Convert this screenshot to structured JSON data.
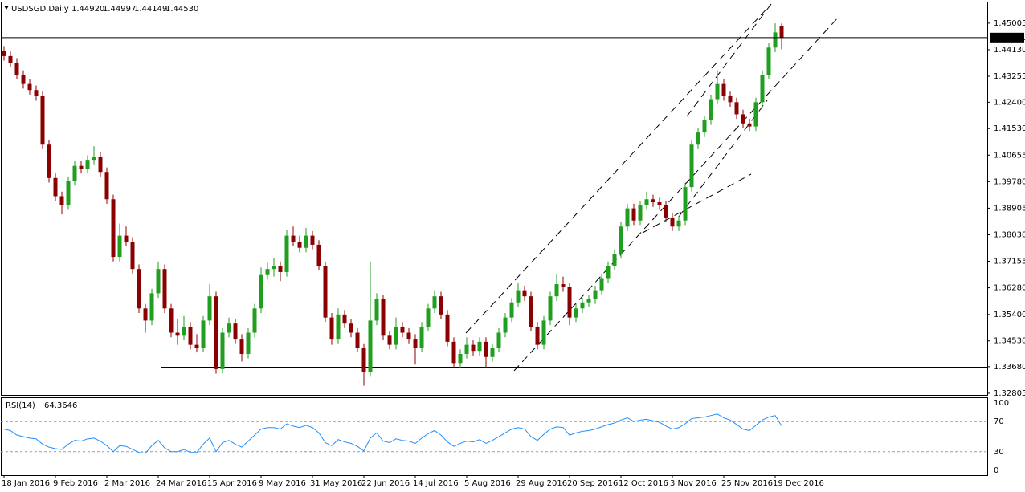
{
  "chart_data": {
    "type": "candlestick",
    "title": "USDSGD,Daily",
    "header_ohlc": [
      {
        "value": 1.4492,
        "label": "1.44920"
      },
      1.44997,
      1.44149,
      {
        "value": 1.4453,
        "label": "1.44530"
      }
    ],
    "last_price": {
      "value": 1.4453,
      "label": "1.44530"
    },
    "up_color": "#1f9e1f",
    "down_color": "#8b0000",
    "categories": [
      "18 Jan 2016",
      null,
      null,
      null,
      null,
      null,
      null,
      null,
      "9 Feb 2016",
      null,
      null,
      null,
      null,
      null,
      null,
      null,
      "2 Mar 2016",
      null,
      null,
      null,
      null,
      null,
      null,
      null,
      "24 Mar 2016",
      null,
      null,
      null,
      null,
      null,
      null,
      null,
      "15 Apr 2016",
      null,
      null,
      null,
      null,
      null,
      null,
      null,
      "9 May 2016",
      null,
      null,
      null,
      null,
      null,
      null,
      null,
      "31 May 2016",
      null,
      null,
      null,
      null,
      null,
      null,
      null,
      "22 Jun 2016",
      null,
      null,
      null,
      null,
      null,
      null,
      null,
      "14 Jul 2016",
      null,
      null,
      null,
      null,
      null,
      null,
      null,
      "5 Aug 2016",
      null,
      null,
      null,
      null,
      null,
      null,
      null,
      "29 Aug 2016",
      null,
      null,
      null,
      null,
      null,
      null,
      null,
      "20 Sep 2016",
      null,
      null,
      null,
      null,
      null,
      null,
      null,
      "12 Oct 2016",
      null,
      null,
      null,
      null,
      null,
      null,
      null,
      "3 Nov 2016",
      null,
      null,
      null,
      null,
      null,
      null,
      null,
      "25 Nov 2016",
      null,
      null,
      null,
      null,
      null,
      null,
      null,
      "19 Dec 2016",
      null
    ],
    "open": [
      1.441,
      1.4392,
      1.437,
      1.433,
      1.43,
      1.428,
      1.426,
      1.41,
      1.399,
      1.393,
      1.39,
      1.398,
      1.403,
      1.402,
      1.405,
      1.406,
      1.401,
      1.392,
      1.373,
      1.38,
      1.378,
      1.369,
      1.356,
      1.352,
      1.361,
      1.369,
      1.356,
      1.348,
      1.347,
      1.35,
      1.344,
      1.343,
      1.352,
      1.36,
      1.336,
      1.348,
      1.351,
      1.346,
      1.341,
      1.348,
      1.356,
      1.367,
      1.369,
      1.37,
      1.368,
      1.38,
      1.378,
      1.376,
      1.38,
      1.377,
      1.37,
      1.353,
      1.346,
      1.354,
      1.351,
      1.348,
      1.343,
      1.335,
      1.352,
      1.359,
      1.347,
      1.344,
      1.35,
      1.348,
      1.346,
      1.343,
      1.35,
      1.356,
      1.36,
      1.354,
      1.345,
      1.338,
      1.341,
      1.344,
      1.342,
      1.345,
      1.34,
      1.343,
      1.348,
      1.353,
      1.358,
      1.362,
      1.36,
      1.35,
      1.344,
      1.352,
      1.36,
      1.364,
      1.363,
      1.353,
      1.356,
      1.358,
      1.359,
      1.362,
      1.366,
      1.37,
      1.374,
      1.383,
      1.389,
      1.385,
      1.39,
      1.392,
      1.391,
      1.39,
      1.386,
      1.383,
      1.385,
      1.396,
      1.41,
      1.414,
      1.418,
      1.425,
      1.43,
      1.426,
      1.424,
      1.42,
      1.417,
      1.416,
      1.424,
      1.433,
      1.442,
      1.4492
    ],
    "high": [
      1.4425,
      1.4407,
      1.4385,
      1.4345,
      1.4315,
      1.4295,
      1.4275,
      1.4115,
      1.4005,
      1.3945,
      1.3995,
      1.4045,
      1.4045,
      1.4065,
      1.4095,
      1.4075,
      1.4025,
      1.3935,
      1.384,
      1.383,
      1.3795,
      1.3705,
      1.3575,
      1.3625,
      1.3715,
      1.3705,
      1.3575,
      1.3525,
      1.3535,
      1.3515,
      1.3475,
      1.3535,
      1.364,
      1.3615,
      1.3495,
      1.353,
      1.3525,
      1.3475,
      1.3495,
      1.3575,
      1.3695,
      1.371,
      1.3725,
      1.3715,
      1.382,
      1.383,
      1.38,
      1.3825,
      1.3815,
      1.3785,
      1.3715,
      1.3545,
      1.356,
      1.3555,
      1.3525,
      1.3495,
      1.3445,
      1.3715,
      1.361,
      1.3605,
      1.3485,
      1.353,
      1.3515,
      1.3495,
      1.3475,
      1.3515,
      1.3575,
      1.362,
      1.3615,
      1.3555,
      1.3465,
      1.3425,
      1.3465,
      1.3455,
      1.3465,
      1.3465,
      1.3445,
      1.3495,
      1.3545,
      1.3595,
      1.3645,
      1.3635,
      1.3615,
      1.3515,
      1.3535,
      1.3615,
      1.3675,
      1.3665,
      1.3645,
      1.3575,
      1.3595,
      1.3605,
      1.3635,
      1.3675,
      1.3715,
      1.3755,
      1.3845,
      1.3905,
      1.3905,
      1.3915,
      1.3945,
      1.3935,
      1.3925,
      1.3915,
      1.3875,
      1.3865,
      1.3975,
      1.4115,
      1.4155,
      1.4195,
      1.4265,
      1.4345,
      1.4315,
      1.4275,
      1.4255,
      1.4215,
      1.4185,
      1.4255,
      1.4345,
      1.4435,
      1.45,
      1.44997
    ],
    "low": [
      1.4377,
      1.4355,
      1.4315,
      1.4285,
      1.4265,
      1.4245,
      1.4085,
      1.3975,
      1.3915,
      1.387,
      1.3885,
      1.3965,
      1.4005,
      1.4005,
      1.4035,
      1.3995,
      1.3905,
      1.3715,
      1.3715,
      1.3765,
      1.3675,
      1.3545,
      1.348,
      1.3505,
      1.3595,
      1.3545,
      1.3465,
      1.344,
      1.3455,
      1.3425,
      1.3415,
      1.3415,
      1.3505,
      1.3345,
      1.3345,
      1.3465,
      1.3445,
      1.3385,
      1.3395,
      1.3465,
      1.3545,
      1.3655,
      1.3665,
      1.365,
      1.3665,
      1.3765,
      1.3745,
      1.3745,
      1.3755,
      1.3685,
      1.3515,
      1.344,
      1.3445,
      1.3495,
      1.3465,
      1.3415,
      1.3305,
      1.3335,
      1.3505,
      1.3455,
      1.3425,
      1.3425,
      1.3465,
      1.3445,
      1.3375,
      1.3415,
      1.3485,
      1.3545,
      1.3525,
      1.3435,
      1.3365,
      1.3365,
      1.3395,
      1.3405,
      1.3405,
      1.3365,
      1.3385,
      1.3415,
      1.3465,
      1.3515,
      1.3565,
      1.3585,
      1.3485,
      1.3425,
      1.3425,
      1.3505,
      1.3585,
      1.3615,
      1.3505,
      1.3515,
      1.3545,
      1.3565,
      1.3575,
      1.3605,
      1.3645,
      1.3685,
      1.3725,
      1.3815,
      1.3835,
      1.3835,
      1.3885,
      1.3895,
      1.3885,
      1.3845,
      1.3815,
      1.3815,
      1.3835,
      1.3945,
      1.4085,
      1.4125,
      1.4165,
      1.4235,
      1.4245,
      1.4225,
      1.4185,
      1.4155,
      1.4145,
      1.4145,
      1.4225,
      1.4315,
      1.4405,
      1.44149
    ],
    "close": [
      1.4392,
      1.437,
      1.433,
      1.43,
      1.428,
      1.426,
      1.41,
      1.399,
      1.393,
      1.39,
      1.398,
      1.403,
      1.402,
      1.405,
      1.406,
      1.401,
      1.392,
      1.373,
      1.38,
      1.378,
      1.369,
      1.356,
      1.352,
      1.361,
      1.369,
      1.356,
      1.348,
      1.347,
      1.35,
      1.344,
      1.343,
      1.352,
      1.36,
      1.336,
      1.348,
      1.351,
      1.346,
      1.341,
      1.348,
      1.356,
      1.367,
      1.369,
      1.37,
      1.368,
      1.38,
      1.378,
      1.376,
      1.38,
      1.377,
      1.37,
      1.353,
      1.346,
      1.354,
      1.351,
      1.348,
      1.343,
      1.335,
      1.352,
      1.359,
      1.347,
      1.344,
      1.35,
      1.348,
      1.346,
      1.343,
      1.35,
      1.356,
      1.36,
      1.354,
      1.345,
      1.338,
      1.341,
      1.344,
      1.342,
      1.345,
      1.34,
      1.343,
      1.348,
      1.353,
      1.358,
      1.362,
      1.36,
      1.35,
      1.344,
      1.352,
      1.36,
      1.364,
      1.363,
      1.353,
      1.356,
      1.358,
      1.359,
      1.362,
      1.366,
      1.37,
      1.374,
      1.383,
      1.389,
      1.385,
      1.39,
      1.392,
      1.391,
      1.39,
      1.386,
      1.383,
      1.385,
      1.396,
      1.41,
      1.414,
      1.418,
      1.425,
      1.43,
      1.426,
      1.424,
      1.42,
      1.417,
      1.416,
      1.424,
      1.433,
      1.442,
      1.447,
      1.4453
    ],
    "ylim": [
      1.3275,
      1.4569
    ],
    "yticks": [
      1.45005,
      {
        "value": 1.4413,
        "label": "1.44130"
      },
      1.43255,
      {
        "value": 1.424,
        "label": "1.42400"
      },
      {
        "value": 1.4153,
        "label": "1.41530"
      },
      1.40655,
      {
        "value": 1.3978,
        "label": "1.39780"
      },
      1.38905,
      {
        "value": 1.3803,
        "label": "1.38030"
      },
      1.37155,
      {
        "value": 1.3628,
        "label": "1.36280"
      },
      {
        "value": 1.354,
        "label": "1.35400"
      },
      {
        "value": 1.3453,
        "label": "1.34530"
      },
      {
        "value": 1.3368,
        "label": "1.33680"
      },
      1.32805
    ],
    "rsi": {
      "name": "RSI(14)",
      "last": 64.3646,
      "color": "#1e90ff",
      "values": [
        60,
        58,
        52,
        50,
        48,
        47,
        40,
        36,
        34,
        33,
        40,
        45,
        44,
        47,
        48,
        44,
        38,
        30,
        38,
        37,
        33,
        29,
        28,
        38,
        45,
        35,
        30,
        30,
        33,
        29,
        29,
        40,
        48,
        30,
        42,
        45,
        40,
        36,
        44,
        52,
        60,
        62,
        62,
        60,
        67,
        64,
        62,
        65,
        62,
        55,
        42,
        38,
        46,
        43,
        41,
        37,
        31,
        48,
        55,
        44,
        42,
        47,
        45,
        44,
        41,
        48,
        54,
        58,
        52,
        43,
        37,
        41,
        44,
        43,
        46,
        41,
        45,
        50,
        55,
        60,
        62,
        60,
        50,
        45,
        53,
        60,
        63,
        62,
        52,
        55,
        57,
        58,
        60,
        63,
        66,
        68,
        72,
        75,
        70,
        72,
        73,
        71,
        69,
        64,
        60,
        62,
        67,
        74,
        75,
        76,
        78,
        80,
        75,
        72,
        66,
        60,
        58,
        65,
        72,
        76,
        78,
        64.3646
      ],
      "ylim": [
        0,
        100
      ],
      "yticks": [
        100,
        70,
        30,
        0
      ]
    }
  }
}
